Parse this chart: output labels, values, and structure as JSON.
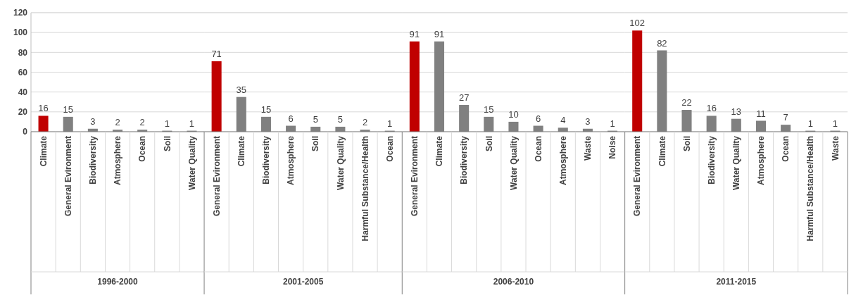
{
  "chart_data": [
    {
      "type": "bar",
      "xlabel": "1996-2000",
      "categories": [
        "Climate",
        "General Evironment",
        "Biodiversity",
        "Atmosphere",
        "Ocean",
        "Soil",
        "Water Quality"
      ],
      "values": [
        16,
        15,
        3,
        2,
        2,
        1,
        1
      ],
      "colors": [
        "#c00000",
        "#808080",
        "#808080",
        "#808080",
        "#808080",
        "#808080",
        "#808080"
      ],
      "ylim": [
        0,
        120
      ],
      "yticks": [
        0,
        20,
        40,
        60,
        80,
        100,
        120
      ],
      "grid": "y",
      "data_labels": true
    },
    {
      "type": "bar",
      "xlabel": "2001-2005",
      "categories": [
        "General Evironment",
        "Climate",
        "Biodiversity",
        "Atmosphere",
        "Soil",
        "Water Quality",
        "Harmful Substance/Health",
        "Ocean"
      ],
      "values": [
        71,
        35,
        15,
        6,
        5,
        5,
        2,
        1
      ],
      "colors": [
        "#c00000",
        "#808080",
        "#808080",
        "#808080",
        "#808080",
        "#808080",
        "#808080",
        "#808080"
      ],
      "ylim": [
        0,
        120
      ],
      "yticks": [
        0,
        20,
        40,
        60,
        80,
        100,
        120
      ],
      "grid": "y",
      "data_labels": true,
      "tick_labels": "x"
    },
    {
      "type": "bar",
      "xlabel": "2006-2010",
      "categories": [
        "General Evironment",
        "Climate",
        "Biodiversity",
        "Soil",
        "Water Quality",
        "Ocean",
        "Atmosphere",
        "Waste",
        "Noise"
      ],
      "values": [
        91,
        91,
        27,
        15,
        10,
        6,
        4,
        3,
        1
      ],
      "colors": [
        "#c00000",
        "#808080",
        "#808080",
        "#808080",
        "#808080",
        "#808080",
        "#808080",
        "#808080",
        "#808080"
      ],
      "ylim": [
        0,
        120
      ],
      "yticks": [
        0,
        20,
        40,
        60,
        80,
        100,
        120
      ],
      "grid": "y",
      "data_labels": true,
      "tick_labels": "x"
    },
    {
      "type": "bar",
      "xlabel": "2011-2015",
      "categories": [
        "General Evironment",
        "Climate",
        "Soil",
        "Biodiversity",
        "Water Quality",
        "Atmosphere",
        "Ocean",
        "Harmful Substance/Health",
        "Waste"
      ],
      "values": [
        102,
        82,
        22,
        16,
        13,
        11,
        7,
        1,
        1
      ],
      "colors": [
        "#c00000",
        "#808080",
        "#808080",
        "#808080",
        "#808080",
        "#808080",
        "#808080",
        "#808080",
        "#808080"
      ],
      "ylim": [
        0,
        120
      ],
      "yticks": [
        0,
        20,
        40,
        60,
        80,
        100,
        120
      ],
      "grid": "y",
      "data_labels": true,
      "tick_labels": "x"
    }
  ]
}
